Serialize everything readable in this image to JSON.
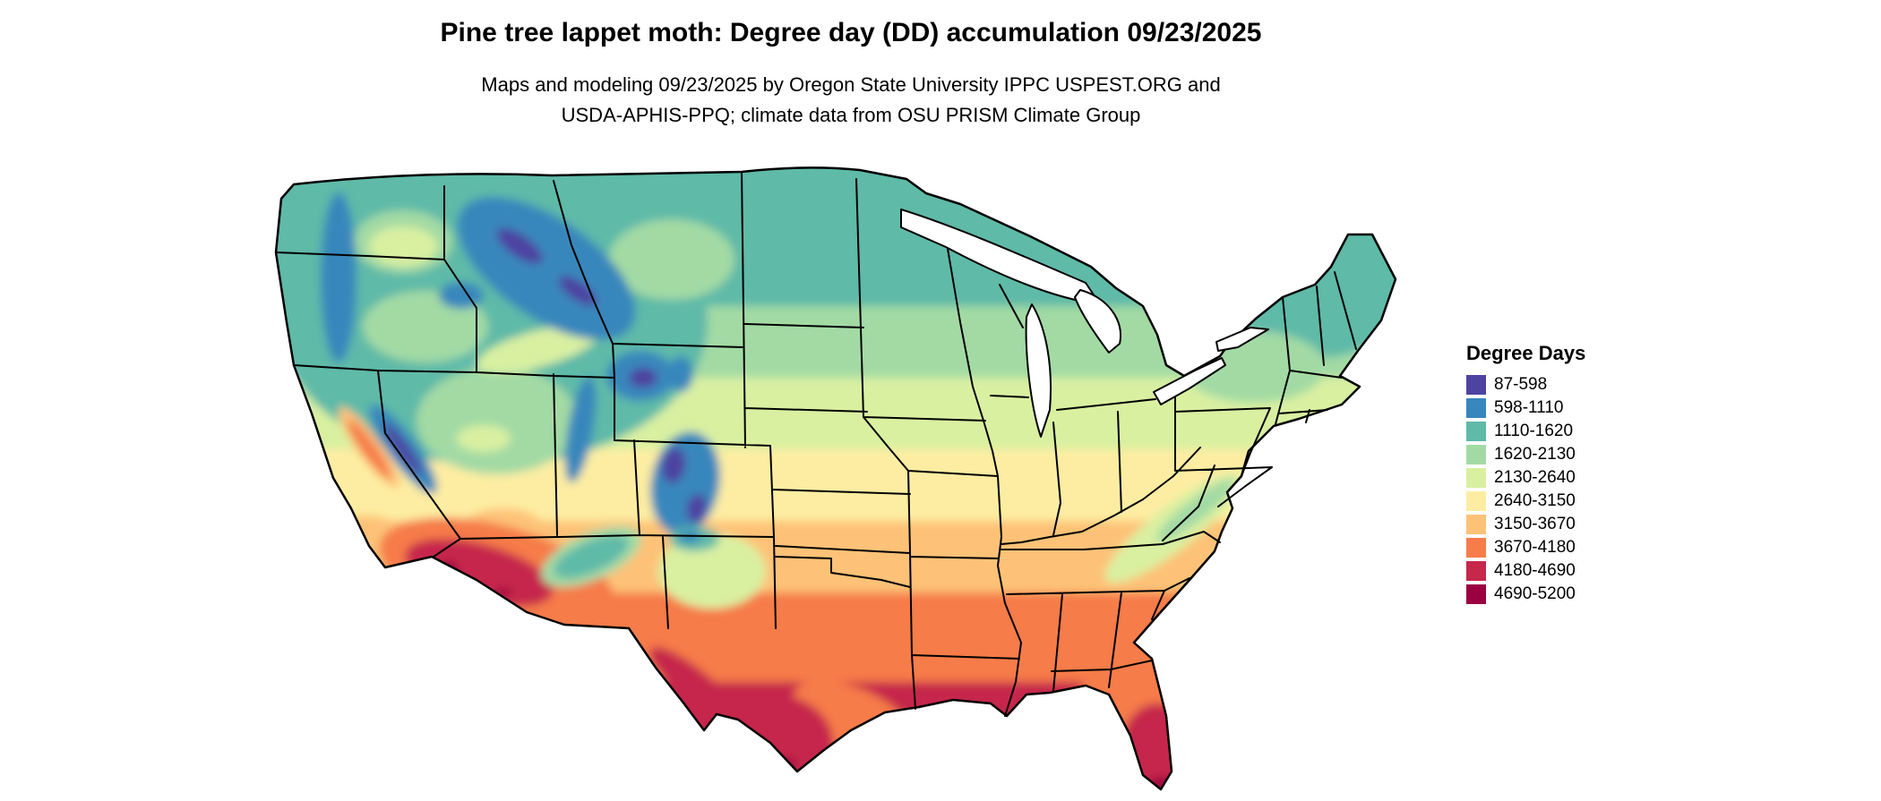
{
  "header": {
    "title": "Pine tree lappet moth: Degree day (DD) accumulation 09/23/2025",
    "subtitle_line1": "Maps and modeling 09/23/2025 by Oregon State University IPPC USPEST.ORG and",
    "subtitle_line2": "USDA-APHIS-PPQ; climate data from OSU PRISM Climate Group"
  },
  "legend": {
    "title": "Degree Days",
    "bins": [
      {
        "label": "87-598",
        "color": "#4d43a1"
      },
      {
        "label": "598-1110",
        "color": "#3787bc"
      },
      {
        "label": "1110-1620",
        "color": "#5fbaa8"
      },
      {
        "label": "1620-2130",
        "color": "#a3daa4"
      },
      {
        "label": "2130-2640",
        "color": "#d9f0a1"
      },
      {
        "label": "2640-3150",
        "color": "#fdeda2"
      },
      {
        "label": "3150-3670",
        "color": "#fdc277"
      },
      {
        "label": "3670-4180",
        "color": "#f67c4a"
      },
      {
        "label": "4180-4690",
        "color": "#c6274b"
      },
      {
        "label": "4690-5200",
        "color": "#9b0041"
      }
    ]
  },
  "map": {
    "name": "Continental United States degree-day accumulation map",
    "water_color": "#ffffff",
    "border_color": "#000000",
    "background_color": "#ffffff"
  }
}
